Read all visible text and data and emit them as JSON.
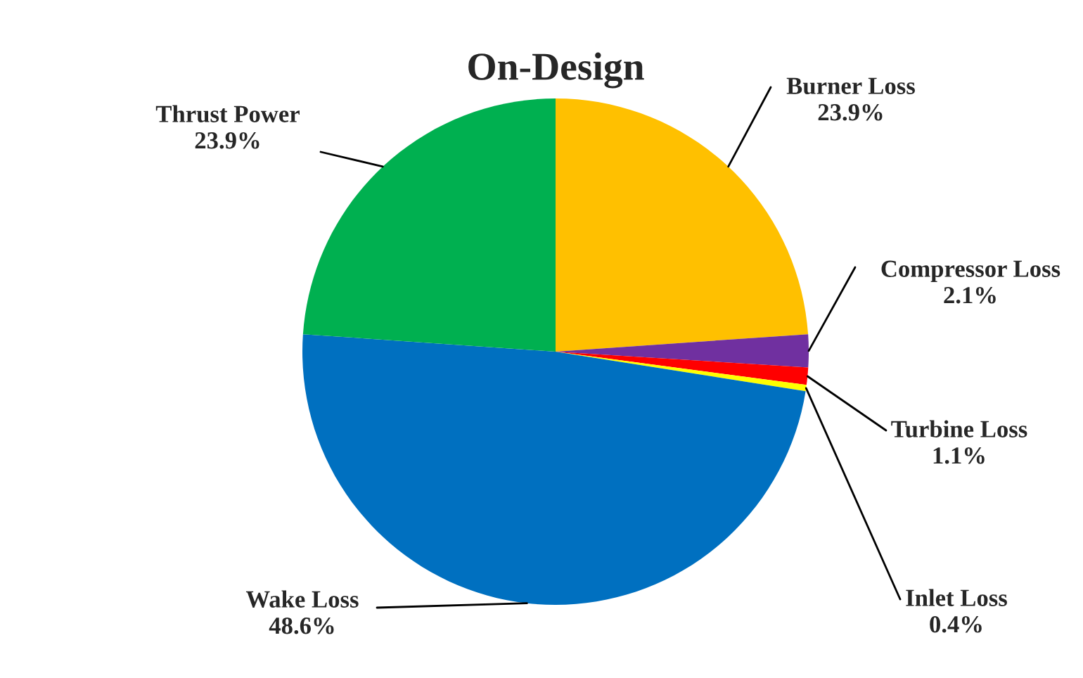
{
  "chart_data": {
    "type": "pie",
    "title": "On-Design",
    "categories": [
      "Burner Loss",
      "Compressor Loss",
      "Turbine Loss",
      "Inlet Loss",
      "Wake Loss",
      "Thrust Power"
    ],
    "values": [
      23.9,
      2.1,
      1.1,
      0.4,
      48.6,
      23.9
    ],
    "value_labels": [
      "23.9%",
      "2.1%",
      "1.1%",
      "0.4%",
      "48.6%",
      "23.9%"
    ],
    "colors": [
      "#ffc000",
      "#7030a0",
      "#ff0000",
      "#ffff00",
      "#0070c0",
      "#00b050"
    ],
    "legend": false
  }
}
